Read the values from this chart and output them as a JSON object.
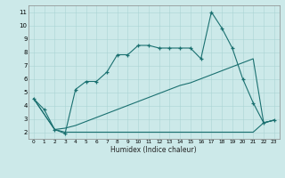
{
  "xlabel": "Humidex (Indice chaleur)",
  "bg": "#cce9e9",
  "grid_color": "#aad4d4",
  "lc": "#1a7070",
  "s1_x": [
    0,
    1,
    2,
    3,
    4,
    5,
    6,
    7,
    8,
    9,
    10,
    11,
    12,
    13,
    14,
    15,
    16,
    17,
    18,
    19,
    20,
    21,
    22,
    23
  ],
  "s1_y": [
    4.5,
    3.7,
    2.2,
    1.9,
    5.2,
    5.8,
    5.8,
    6.5,
    7.8,
    7.8,
    8.5,
    8.5,
    8.3,
    8.3,
    8.3,
    8.3,
    7.5,
    11.0,
    9.8,
    8.3,
    6.0,
    4.2,
    2.7,
    2.9
  ],
  "s2_x": [
    0,
    2,
    3,
    4,
    5,
    6,
    7,
    8,
    9,
    10,
    11,
    12,
    13,
    14,
    15,
    16,
    17,
    18,
    19,
    20,
    21,
    22,
    23
  ],
  "s2_y": [
    4.5,
    2.2,
    2.3,
    2.5,
    2.8,
    3.1,
    3.4,
    3.7,
    4.0,
    4.3,
    4.6,
    4.9,
    5.2,
    5.5,
    5.7,
    6.0,
    6.3,
    6.6,
    6.9,
    7.2,
    7.5,
    2.7,
    2.9
  ],
  "s3_x": [
    0,
    2,
    3,
    4,
    5,
    6,
    7,
    8,
    9,
    10,
    11,
    12,
    13,
    14,
    15,
    16,
    17,
    18,
    19,
    20,
    21,
    22,
    23
  ],
  "s3_y": [
    4.5,
    2.2,
    2.0,
    2.0,
    2.0,
    2.0,
    2.0,
    2.0,
    2.0,
    2.0,
    2.0,
    2.0,
    2.0,
    2.0,
    2.0,
    2.0,
    2.0,
    2.0,
    2.0,
    2.0,
    2.0,
    2.7,
    2.9
  ],
  "ylim": [
    1.5,
    11.5
  ],
  "xlim": [
    -0.5,
    23.5
  ],
  "yticks": [
    2,
    3,
    4,
    5,
    6,
    7,
    8,
    9,
    10,
    11
  ],
  "xticks": [
    0,
    1,
    2,
    3,
    4,
    5,
    6,
    7,
    8,
    9,
    10,
    11,
    12,
    13,
    14,
    15,
    16,
    17,
    18,
    19,
    20,
    21,
    22,
    23
  ],
  "xtick_labels": [
    "0",
    "1",
    "2",
    "3",
    "4",
    "5",
    "6",
    "7",
    "8",
    "9",
    "10",
    "11",
    "12",
    "13",
    "14",
    "15",
    "16",
    "17",
    "18",
    "19",
    "20",
    "21",
    "22",
    "23"
  ]
}
